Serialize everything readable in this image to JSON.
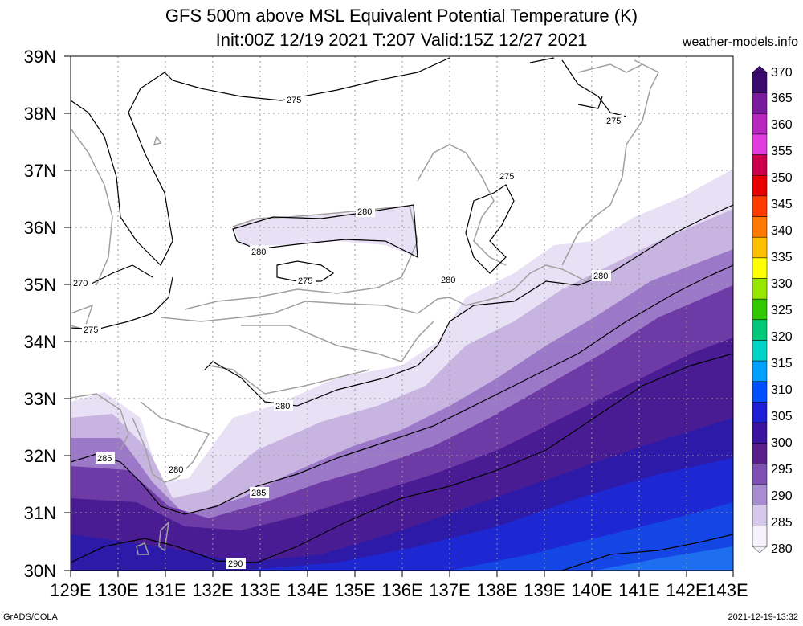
{
  "header": {
    "title_line1": "GFS 500m above MSL Equivalent Potential Temperature (K)",
    "title_line2": "Init:00Z 12/19 2021 T:207 Valid:15Z 12/27 2021",
    "site": "weather-models.info"
  },
  "footer": {
    "left": "GrADS/COLA",
    "right": "2021-12-19-13:32"
  },
  "map": {
    "lat_labels": [
      "39N",
      "38N",
      "37N",
      "36N",
      "35N",
      "34N",
      "33N",
      "32N",
      "31N",
      "30N"
    ],
    "lon_labels": [
      "129E",
      "130E",
      "131E",
      "132E",
      "133E",
      "134E",
      "135E",
      "136E",
      "137E",
      "138E",
      "139E",
      "140E",
      "141E",
      "142E",
      "143E"
    ],
    "lat_range": [
      30,
      39
    ],
    "lon_range": [
      129,
      143
    ],
    "grid": "dotted",
    "contour_labels": [
      "275",
      "275",
      "275",
      "275",
      "275",
      "270",
      "280",
      "280",
      "280",
      "280",
      "280",
      "280",
      "285",
      "285",
      "290"
    ]
  },
  "colorbar": {
    "labels": [
      "370",
      "365",
      "360",
      "355",
      "350",
      "345",
      "340",
      "335",
      "330",
      "325",
      "320",
      "315",
      "310",
      "305",
      "300",
      "295",
      "290",
      "285",
      "280"
    ],
    "colors": [
      "#3c0a6e",
      "#7a1a9c",
      "#b826c0",
      "#e03ce0",
      "#c8004b",
      "#e60000",
      "#ff3c00",
      "#ff7800",
      "#ffbe00",
      "#ffff00",
      "#96e600",
      "#32c800",
      "#00c878",
      "#00d2c8",
      "#00a0ff",
      "#0050ff",
      "#1e1ed2",
      "#3a14a0",
      "#5a1e8c",
      "#7e50b4",
      "#a88cd2",
      "#d6c8ea",
      "#f5f0fa"
    ]
  }
}
